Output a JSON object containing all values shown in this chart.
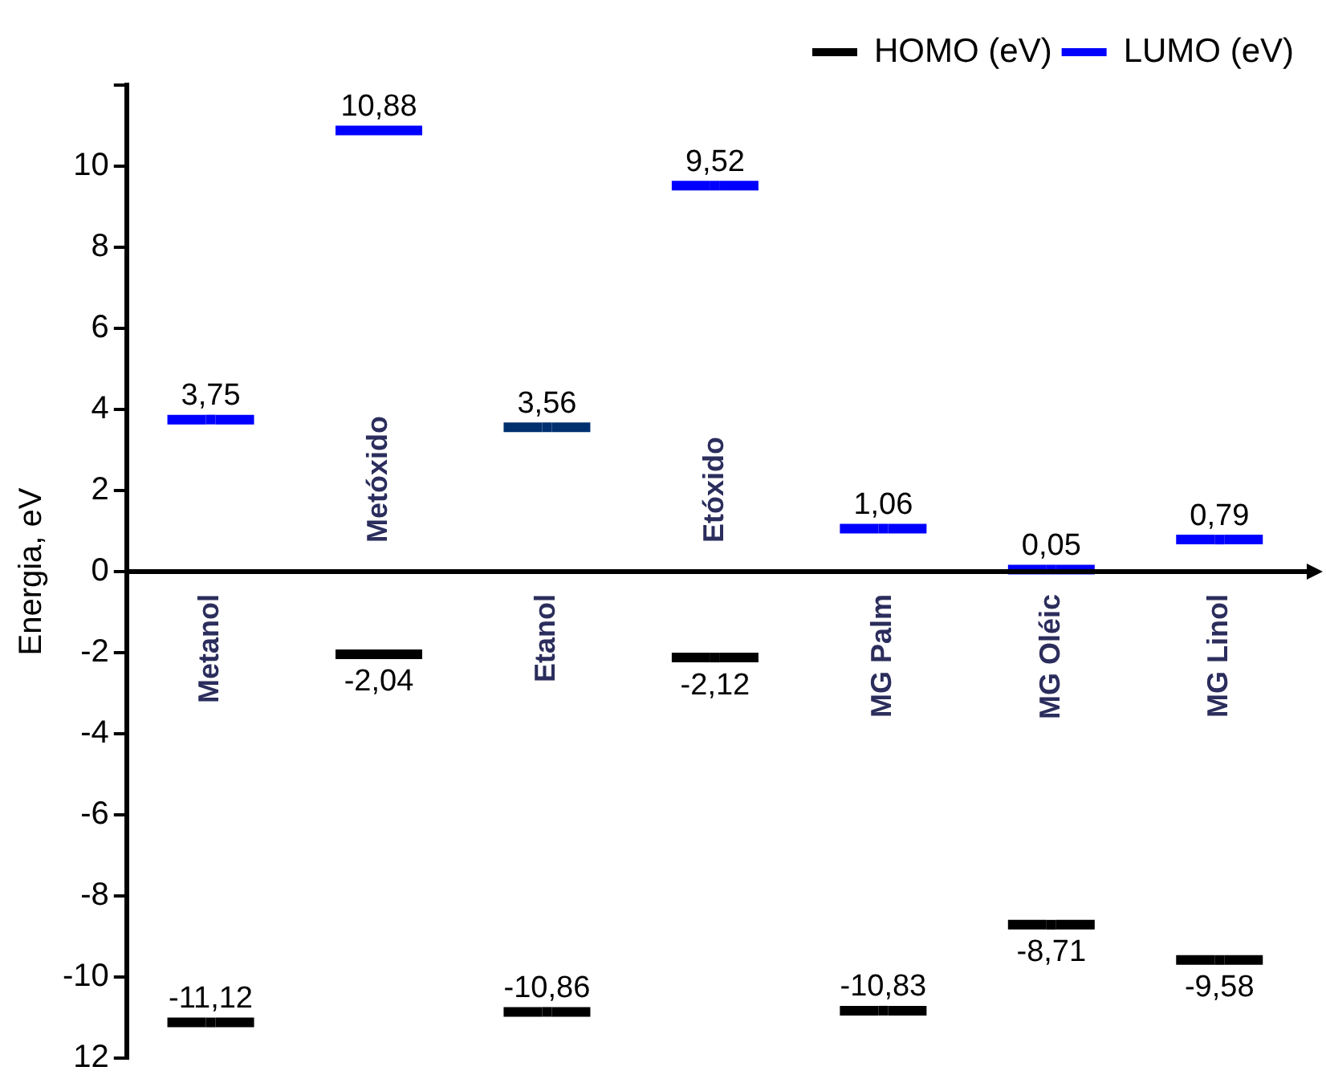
{
  "chart_data": {
    "type": "scatter",
    "ylabel": "Energia, eV",
    "categories": [
      "Metanol",
      "Metóxido",
      "Etanol",
      "Etóxido",
      "MG Palm",
      "MG Oléic",
      "MG Linol"
    ],
    "series": [
      {
        "name": "HOMO (eV)",
        "color": "#000000",
        "values": [
          -11.12,
          -2.04,
          -10.86,
          -2.12,
          -10.83,
          -8.71,
          -9.58
        ],
        "value_labels": [
          "-11,12",
          "-2,04",
          "-10,86",
          "-2,12",
          "-10,83",
          "-8,71",
          "-9,58"
        ]
      },
      {
        "name": "LUMO (eV)",
        "color": "#0000ff",
        "colors": [
          "#0000ff",
          "#0000ff",
          "#003070",
          "#0000ff",
          "#0000ff",
          "#0000ff",
          "#0000ff"
        ],
        "values": [
          3.75,
          10.88,
          3.56,
          9.52,
          1.06,
          0.05,
          0.79
        ],
        "value_labels": [
          "3,75",
          "10,88",
          "3,56",
          "9,52",
          "1,06",
          "0,05",
          "0,79"
        ]
      }
    ],
    "ylim": [
      -12,
      12
    ],
    "yticks": [
      {
        "value": -12,
        "label": "12"
      },
      -10,
      -8,
      -6,
      -4,
      -2,
      0,
      2,
      4,
      6,
      8,
      10,
      {
        "value": 12,
        "label": null
      }
    ],
    "legend": "top right",
    "grid": false
  }
}
